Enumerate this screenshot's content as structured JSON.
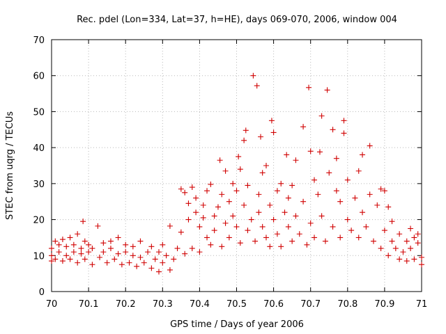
{
  "chart_data": {
    "type": "scatter",
    "title": "Rec. pdel (Lon=334, Lat=37, h=HE), days 069-070, 2006, window 004",
    "xlabel": "GPS time / Days of year 2006",
    "ylabel": "STEC from uqrg / TECUs",
    "xlim": [
      70,
      71
    ],
    "ylim": [
      0,
      70
    ],
    "x_ticks": [
      "70",
      "70.1",
      "70.2",
      "70.3",
      "70.4",
      "70.5",
      "70.6",
      "70.7",
      "70.8",
      "70.9",
      "71"
    ],
    "y_ticks": [
      "0",
      "10",
      "20",
      "30",
      "40",
      "50",
      "60",
      "70"
    ],
    "grid": true,
    "legend": "none",
    "marker": "plus",
    "color": "#d00000",
    "series": [
      {
        "points": [
          [
            70.0,
            8.5
          ],
          [
            70.0,
            10
          ],
          [
            70.0,
            12
          ],
          [
            70.01,
            14
          ],
          [
            70.01,
            9
          ],
          [
            70.02,
            11
          ],
          [
            70.02,
            13
          ],
          [
            70.03,
            8.5
          ],
          [
            70.03,
            14.5
          ],
          [
            70.04,
            10
          ],
          [
            70.04,
            12.5
          ],
          [
            70.05,
            9
          ],
          [
            70.05,
            15
          ],
          [
            70.06,
            11
          ],
          [
            70.06,
            13
          ],
          [
            70.07,
            8
          ],
          [
            70.07,
            16
          ],
          [
            70.08,
            10.5
          ],
          [
            70.08,
            12
          ],
          [
            70.085,
            19.5
          ],
          [
            70.09,
            9
          ],
          [
            70.09,
            14
          ],
          [
            70.1,
            11
          ],
          [
            70.1,
            13
          ],
          [
            70.11,
            7.5
          ],
          [
            70.11,
            12
          ],
          [
            70.125,
            18.2
          ],
          [
            70.13,
            9.5
          ],
          [
            70.14,
            11
          ],
          [
            70.14,
            13.5
          ],
          [
            70.15,
            8
          ],
          [
            70.16,
            12
          ],
          [
            70.16,
            14
          ],
          [
            70.17,
            9
          ],
          [
            70.18,
            10.5
          ],
          [
            70.18,
            15
          ],
          [
            70.19,
            7.5
          ],
          [
            70.2,
            11
          ],
          [
            70.2,
            13
          ],
          [
            70.21,
            8
          ],
          [
            70.22,
            10
          ],
          [
            70.22,
            12.5
          ],
          [
            70.23,
            7
          ],
          [
            70.24,
            9.5
          ],
          [
            70.24,
            14
          ],
          [
            70.25,
            8
          ],
          [
            70.26,
            11
          ],
          [
            70.27,
            6.5
          ],
          [
            70.27,
            12.5
          ],
          [
            70.28,
            9
          ],
          [
            70.29,
            5.5
          ],
          [
            70.29,
            11
          ],
          [
            70.3,
            8
          ],
          [
            70.3,
            13
          ],
          [
            70.31,
            10
          ],
          [
            70.32,
            18.2
          ],
          [
            70.32,
            6
          ],
          [
            70.33,
            9
          ],
          [
            70.34,
            12
          ],
          [
            70.35,
            28.5
          ],
          [
            70.35,
            16.5
          ],
          [
            70.36,
            27.5
          ],
          [
            70.36,
            10.5
          ],
          [
            70.37,
            20
          ],
          [
            70.37,
            24.5
          ],
          [
            70.38,
            29
          ],
          [
            70.38,
            12
          ],
          [
            70.39,
            22
          ],
          [
            70.39,
            26
          ],
          [
            70.4,
            18
          ],
          [
            70.4,
            11
          ],
          [
            70.41,
            20.5
          ],
          [
            70.41,
            24
          ],
          [
            70.42,
            15
          ],
          [
            70.42,
            28
          ],
          [
            70.43,
            29.8
          ],
          [
            70.43,
            13
          ],
          [
            70.44,
            21
          ],
          [
            70.44,
            17
          ],
          [
            70.45,
            23.5
          ],
          [
            70.455,
            36.5
          ],
          [
            70.46,
            12.5
          ],
          [
            70.46,
            27
          ],
          [
            70.47,
            19
          ],
          [
            70.47,
            33.5
          ],
          [
            70.48,
            25
          ],
          [
            70.48,
            15
          ],
          [
            70.49,
            21
          ],
          [
            70.49,
            30
          ],
          [
            70.5,
            18
          ],
          [
            70.5,
            28
          ],
          [
            70.505,
            37.5
          ],
          [
            70.51,
            13.5
          ],
          [
            70.51,
            34
          ],
          [
            70.52,
            24
          ],
          [
            70.52,
            42
          ],
          [
            70.525,
            44.8
          ],
          [
            70.53,
            17
          ],
          [
            70.53,
            29.5
          ],
          [
            70.54,
            20
          ],
          [
            70.545,
            60
          ],
          [
            70.55,
            14
          ],
          [
            70.555,
            57.2
          ],
          [
            70.56,
            27
          ],
          [
            70.56,
            22
          ],
          [
            70.565,
            43
          ],
          [
            70.57,
            18
          ],
          [
            70.57,
            33
          ],
          [
            70.58,
            15
          ],
          [
            70.58,
            35
          ],
          [
            70.59,
            24
          ],
          [
            70.59,
            12.5
          ],
          [
            70.595,
            47.5
          ],
          [
            70.6,
            44.2
          ],
          [
            70.6,
            20
          ],
          [
            70.61,
            28
          ],
          [
            70.61,
            16
          ],
          [
            70.62,
            30
          ],
          [
            70.62,
            12.5
          ],
          [
            70.63,
            22
          ],
          [
            70.635,
            38
          ],
          [
            70.64,
            18
          ],
          [
            70.64,
            26
          ],
          [
            70.65,
            14
          ],
          [
            70.65,
            29.5
          ],
          [
            70.66,
            36.5
          ],
          [
            70.66,
            21
          ],
          [
            70.67,
            16
          ],
          [
            70.68,
            45.8
          ],
          [
            70.68,
            25
          ],
          [
            70.69,
            13
          ],
          [
            70.695,
            56.7
          ],
          [
            70.7,
            39
          ],
          [
            70.7,
            19
          ],
          [
            70.71,
            31
          ],
          [
            70.71,
            15
          ],
          [
            70.72,
            27
          ],
          [
            70.725,
            38.8
          ],
          [
            70.73,
            48.8
          ],
          [
            70.73,
            21
          ],
          [
            70.74,
            14
          ],
          [
            70.745,
            56
          ],
          [
            70.75,
            33
          ],
          [
            70.76,
            45
          ],
          [
            70.76,
            18
          ],
          [
            70.77,
            28
          ],
          [
            70.77,
            37
          ],
          [
            70.78,
            15
          ],
          [
            70.78,
            25
          ],
          [
            70.79,
            47.5
          ],
          [
            70.79,
            44
          ],
          [
            70.8,
            20
          ],
          [
            70.8,
            31
          ],
          [
            70.81,
            17
          ],
          [
            70.82,
            26
          ],
          [
            70.83,
            33.5
          ],
          [
            70.83,
            15
          ],
          [
            70.84,
            38
          ],
          [
            70.84,
            22
          ],
          [
            70.85,
            18
          ],
          [
            70.86,
            40.5
          ],
          [
            70.86,
            27
          ],
          [
            70.87,
            14
          ],
          [
            70.88,
            24
          ],
          [
            70.89,
            28.5
          ],
          [
            70.89,
            12
          ],
          [
            70.9,
            28
          ],
          [
            70.9,
            17
          ],
          [
            70.91,
            23.5
          ],
          [
            70.91,
            10
          ],
          [
            70.92,
            19.5
          ],
          [
            70.92,
            14
          ],
          [
            70.93,
            12
          ],
          [
            70.94,
            9
          ],
          [
            70.94,
            16
          ],
          [
            70.95,
            11
          ],
          [
            70.96,
            14
          ],
          [
            70.96,
            8.5
          ],
          [
            70.97,
            17.5
          ],
          [
            70.97,
            12
          ],
          [
            70.98,
            15
          ],
          [
            70.98,
            9
          ],
          [
            70.99,
            16
          ],
          [
            70.99,
            13.5
          ],
          [
            71.0,
            9.5
          ],
          [
            71.0,
            7.5
          ]
        ]
      }
    ]
  }
}
